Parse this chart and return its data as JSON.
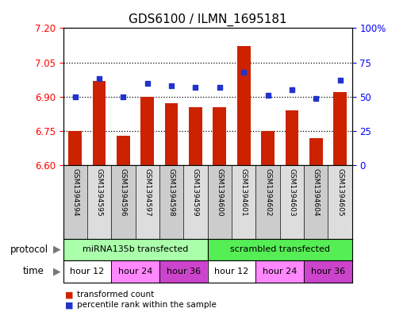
{
  "title": "GDS6100 / ILMN_1695181",
  "samples": [
    "GSM1394594",
    "GSM1394595",
    "GSM1394596",
    "GSM1394597",
    "GSM1394598",
    "GSM1394599",
    "GSM1394600",
    "GSM1394601",
    "GSM1394602",
    "GSM1394603",
    "GSM1394604",
    "GSM1394605"
  ],
  "transformed_count": [
    6.75,
    6.97,
    6.73,
    6.9,
    6.87,
    6.855,
    6.855,
    7.12,
    6.75,
    6.84,
    6.72,
    6.92
  ],
  "percentile_rank": [
    50,
    63,
    50,
    60,
    58,
    57,
    57,
    68,
    51,
    55,
    49,
    62
  ],
  "ylim_left": [
    6.6,
    7.2
  ],
  "ylim_right": [
    0,
    100
  ],
  "yticks_left": [
    6.6,
    6.75,
    6.9,
    7.05,
    7.2
  ],
  "yticks_right": [
    0,
    25,
    50,
    75,
    100
  ],
  "hlines": [
    6.75,
    6.9,
    7.05
  ],
  "bar_color": "#CC2200",
  "dot_color": "#2233CC",
  "bar_width": 0.55,
  "protocol_groups": [
    {
      "label": "miRNA135b transfected",
      "start": 0,
      "end": 6,
      "color": "#AAFFAA"
    },
    {
      "label": "scrambled transfected",
      "start": 6,
      "end": 12,
      "color": "#55EE55"
    }
  ],
  "time_groups": [
    {
      "label": "hour 12",
      "start": 0,
      "end": 2,
      "color": "#FFFFFF"
    },
    {
      "label": "hour 24",
      "start": 2,
      "end": 4,
      "color": "#FF88FF"
    },
    {
      "label": "hour 36",
      "start": 4,
      "end": 6,
      "color": "#CC44CC"
    },
    {
      "label": "hour 12",
      "start": 6,
      "end": 8,
      "color": "#FFFFFF"
    },
    {
      "label": "hour 24",
      "start": 8,
      "end": 10,
      "color": "#FF88FF"
    },
    {
      "label": "hour 36",
      "start": 10,
      "end": 12,
      "color": "#CC44CC"
    }
  ],
  "legend_items": [
    {
      "label": "transformed count",
      "color": "#CC2200"
    },
    {
      "label": "percentile rank within the sample",
      "color": "#2233CC"
    }
  ],
  "protocol_label": "protocol",
  "time_label": "time",
  "title_fontsize": 11,
  "tick_fontsize": 8.5,
  "label_fontsize": 8.5,
  "sample_colors": [
    "#CCCCCC",
    "#DDDDDD",
    "#CCCCCC",
    "#DDDDDD",
    "#CCCCCC",
    "#DDDDDD",
    "#CCCCCC",
    "#DDDDDD",
    "#CCCCCC",
    "#DDDDDD",
    "#CCCCCC",
    "#DDDDDD"
  ]
}
